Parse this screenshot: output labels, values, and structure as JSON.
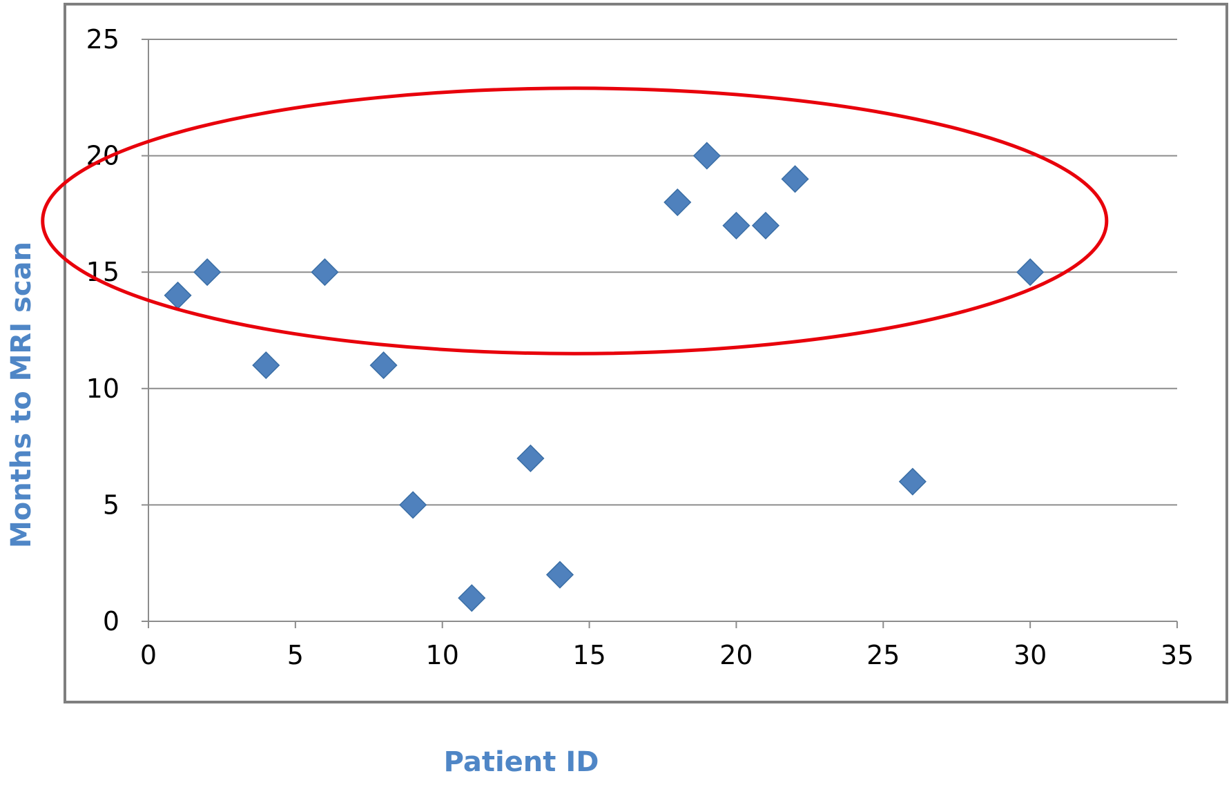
{
  "chart_data": {
    "type": "scatter",
    "title": "",
    "xlabel": "Patient ID",
    "ylabel": "Months to MRI scan",
    "xlim": [
      0,
      35
    ],
    "ylim": [
      0,
      25
    ],
    "x_ticks": [
      "0",
      "5",
      "10",
      "15",
      "20",
      "25",
      "30",
      "35"
    ],
    "y_ticks": [
      "0",
      "5",
      "10",
      "15",
      "20",
      "25"
    ],
    "grid": "horizontal",
    "legend": "none",
    "points": [
      {
        "x": 1,
        "y": 14
      },
      {
        "x": 2,
        "y": 15
      },
      {
        "x": 4,
        "y": 11
      },
      {
        "x": 6,
        "y": 15
      },
      {
        "x": 8,
        "y": 11
      },
      {
        "x": 9,
        "y": 5
      },
      {
        "x": 11,
        "y": 1
      },
      {
        "x": 13,
        "y": 7
      },
      {
        "x": 14,
        "y": 2
      },
      {
        "x": 18,
        "y": 18
      },
      {
        "x": 19,
        "y": 20
      },
      {
        "x": 20,
        "y": 17
      },
      {
        "x": 21,
        "y": 17
      },
      {
        "x": 22,
        "y": 19
      },
      {
        "x": 26,
        "y": 6
      },
      {
        "x": 30,
        "y": 15
      }
    ],
    "annotation": {
      "shape": "ellipse",
      "center": {
        "x": 14.5,
        "y": 17.2
      },
      "radius_x": 18.1,
      "radius_y": 5.7
    },
    "colors": {
      "marker": "#4f81bd",
      "marker_edge": "#3a6ea5",
      "grid": "#8c8c8c",
      "axis": "#8c8c8c",
      "frame": "#7f7f7f",
      "annotation": "#e8000b",
      "axis_title": "#4f86c6"
    },
    "marker_shape": "diamond"
  }
}
